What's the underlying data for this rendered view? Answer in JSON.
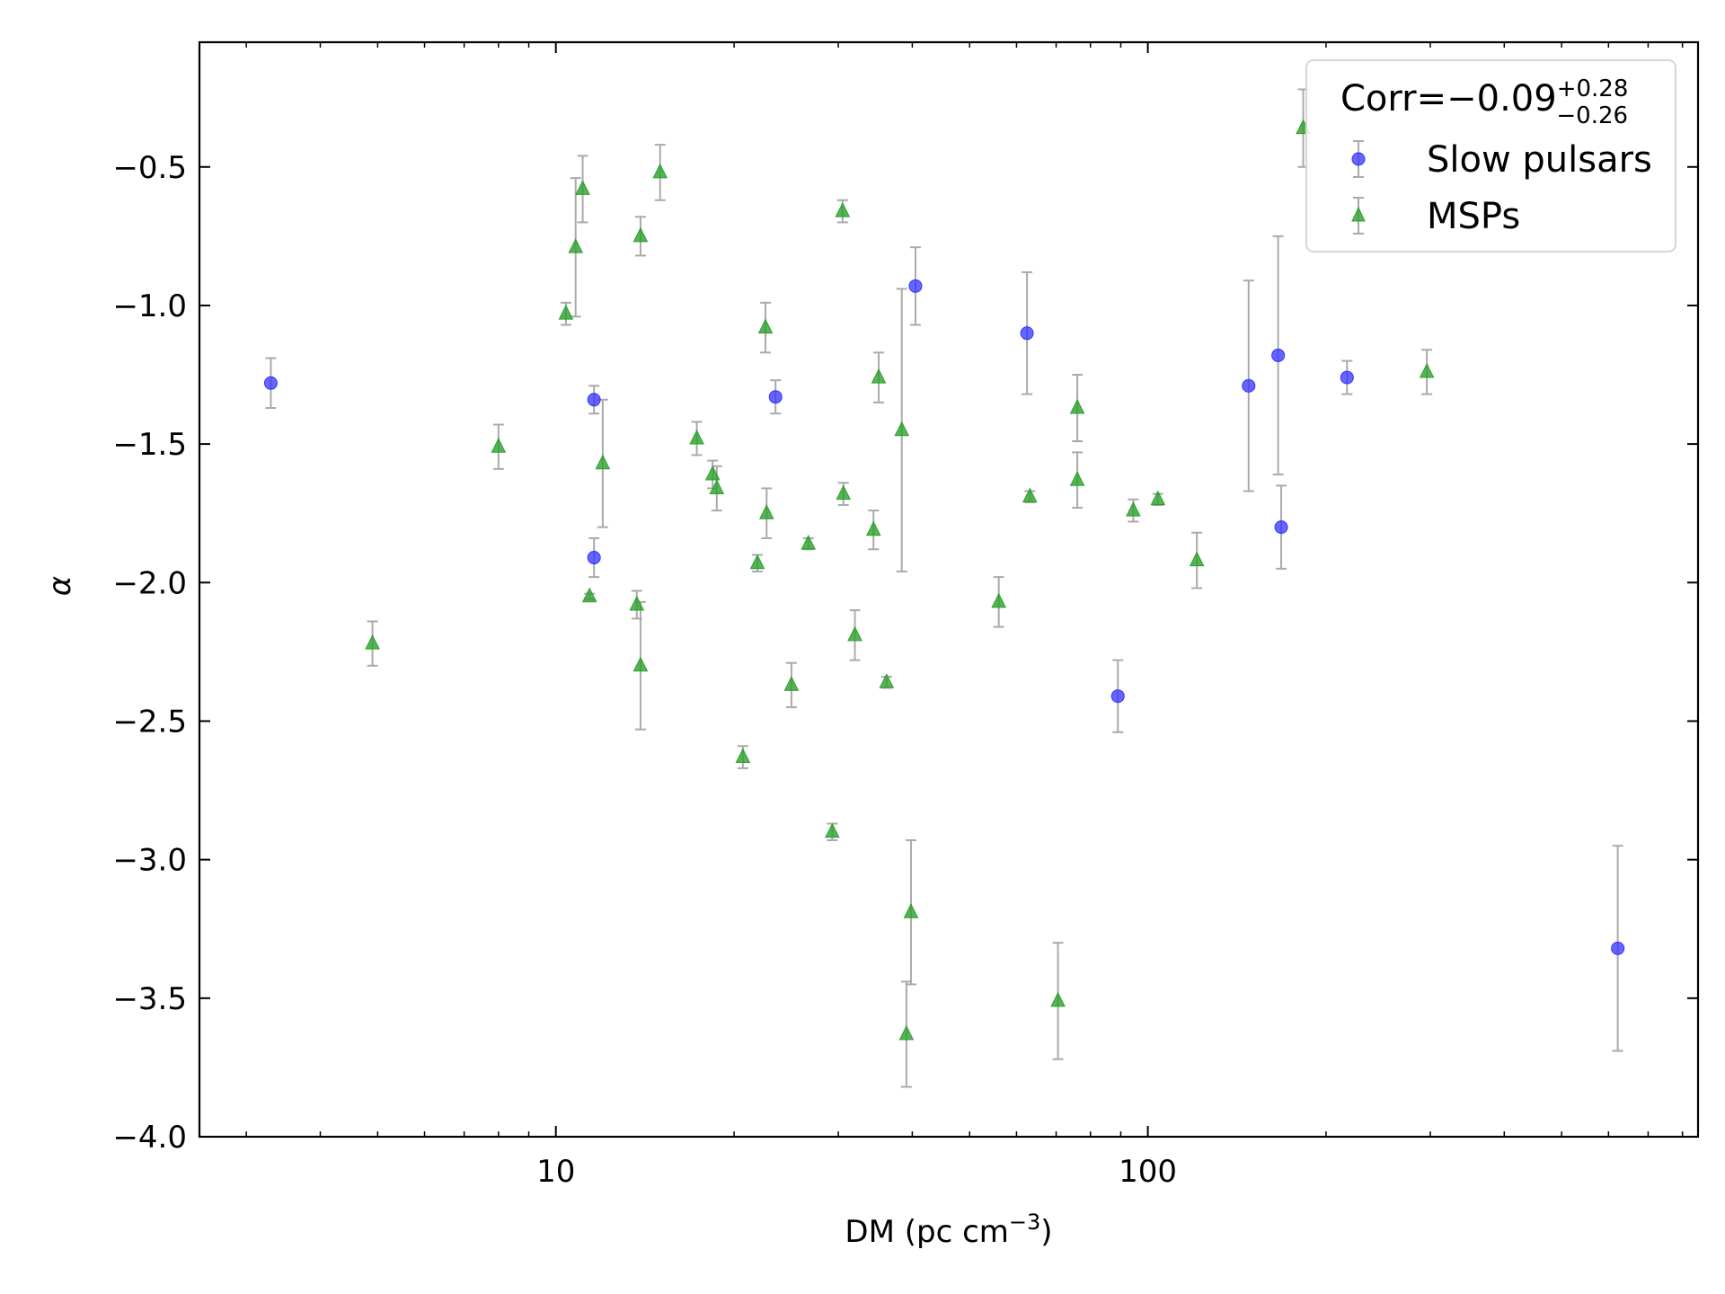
{
  "chart_data": {
    "type": "scatter",
    "title": "",
    "xlabel": "DM (pc cm",
    "xlabel_sup": "−3",
    "xlabel_close": ")",
    "ylabel": "α",
    "xscale": "log",
    "xlim": [
      2.5,
      850
    ],
    "ylim": [
      -4.0,
      -0.05
    ],
    "grid": false,
    "legend_position": "top-right",
    "x_ticks": [
      {
        "value": 10,
        "label": "10"
      },
      {
        "value": 100,
        "label": "100"
      }
    ],
    "y_ticks": [
      {
        "value": -0.5,
        "label": "−0.5"
      },
      {
        "value": -1.0,
        "label": "−1.0"
      },
      {
        "value": -1.5,
        "label": "−1.5"
      },
      {
        "value": -2.0,
        "label": "−2.0"
      },
      {
        "value": -2.5,
        "label": "−2.5"
      },
      {
        "value": -3.0,
        "label": "−3.0"
      },
      {
        "value": -3.5,
        "label": "−3.5"
      },
      {
        "value": -4.0,
        "label": "−4.0"
      }
    ],
    "annotation": {
      "prefix": "Corr=−0.09",
      "sup": "+0.28",
      "sub": "−0.26"
    },
    "series": [
      {
        "name": "Slow pulsars",
        "marker": "circle",
        "color": "#3333ff",
        "points": [
          {
            "x": 3.3,
            "y": -1.28,
            "err": 0.09
          },
          {
            "x": 11.6,
            "y": -1.34,
            "err": 0.05
          },
          {
            "x": 11.6,
            "y": -1.91,
            "err": 0.07
          },
          {
            "x": 23.5,
            "y": -1.33,
            "err": 0.06
          },
          {
            "x": 40.5,
            "y": -0.93,
            "err": 0.14
          },
          {
            "x": 62.5,
            "y": -1.1,
            "err": 0.22
          },
          {
            "x": 89,
            "y": -2.41,
            "err": 0.13
          },
          {
            "x": 148,
            "y": -1.29,
            "err": 0.38
          },
          {
            "x": 166,
            "y": -1.18,
            "err": 0.43
          },
          {
            "x": 168,
            "y": -1.8,
            "err": 0.15
          },
          {
            "x": 217,
            "y": -1.26,
            "err": 0.06
          },
          {
            "x": 622,
            "y": -3.32,
            "err": 0.37
          }
        ]
      },
      {
        "name": "MSPs",
        "marker": "triangle",
        "color": "#2ca02c",
        "points": [
          {
            "x": 4.9,
            "y": -2.22,
            "err": 0.08
          },
          {
            "x": 8.0,
            "y": -1.51,
            "err": 0.08
          },
          {
            "x": 10.4,
            "y": -1.03,
            "err": 0.04
          },
          {
            "x": 10.8,
            "y": -0.79,
            "err": 0.25
          },
          {
            "x": 11.1,
            "y": -0.58,
            "err": 0.12
          },
          {
            "x": 11.4,
            "y": -2.05,
            "err": 0.01
          },
          {
            "x": 12.0,
            "y": -1.57,
            "err": 0.23
          },
          {
            "x": 13.7,
            "y": -2.08,
            "err": 0.05
          },
          {
            "x": 13.9,
            "y": -0.75,
            "err": 0.07
          },
          {
            "x": 13.9,
            "y": -2.3,
            "err": 0.23
          },
          {
            "x": 15.0,
            "y": -0.52,
            "err": 0.1
          },
          {
            "x": 17.3,
            "y": -1.48,
            "err": 0.06
          },
          {
            "x": 18.4,
            "y": -1.61,
            "err": 0.05
          },
          {
            "x": 18.7,
            "y": -1.66,
            "err": 0.08
          },
          {
            "x": 20.7,
            "y": -2.63,
            "err": 0.04
          },
          {
            "x": 21.9,
            "y": -1.93,
            "err": 0.03
          },
          {
            "x": 22.6,
            "y": -1.08,
            "err": 0.09
          },
          {
            "x": 22.7,
            "y": -1.75,
            "err": 0.09
          },
          {
            "x": 25.0,
            "y": -2.37,
            "err": 0.08
          },
          {
            "x": 26.7,
            "y": -1.86,
            "err": 0.02
          },
          {
            "x": 29.3,
            "y": -2.9,
            "err": 0.03
          },
          {
            "x": 30.5,
            "y": -0.66,
            "err": 0.04
          },
          {
            "x": 30.6,
            "y": -1.68,
            "err": 0.04
          },
          {
            "x": 32.0,
            "y": -2.19,
            "err": 0.09
          },
          {
            "x": 34.4,
            "y": -1.81,
            "err": 0.07
          },
          {
            "x": 35.1,
            "y": -1.26,
            "err": 0.09
          },
          {
            "x": 36.2,
            "y": -2.36,
            "err": 0.02
          },
          {
            "x": 38.4,
            "y": -1.45,
            "err": 0.51
          },
          {
            "x": 39.1,
            "y": -3.63,
            "err": 0.19
          },
          {
            "x": 39.8,
            "y": -3.19,
            "err": 0.26
          },
          {
            "x": 56.0,
            "y": -2.07,
            "err": 0.09
          },
          {
            "x": 63.2,
            "y": -1.69,
            "err": 0.02
          },
          {
            "x": 70.5,
            "y": -3.51,
            "err": 0.21
          },
          {
            "x": 76.0,
            "y": -1.37,
            "err": 0.12
          },
          {
            "x": 76.0,
            "y": -1.63,
            "err": 0.1
          },
          {
            "x": 94.5,
            "y": -1.74,
            "err": 0.04
          },
          {
            "x": 104,
            "y": -1.7,
            "err": 0.02
          },
          {
            "x": 121,
            "y": -1.92,
            "err": 0.1
          },
          {
            "x": 183,
            "y": -0.36,
            "err": 0.14
          },
          {
            "x": 296,
            "y": -1.24,
            "err": 0.08
          }
        ]
      }
    ]
  }
}
